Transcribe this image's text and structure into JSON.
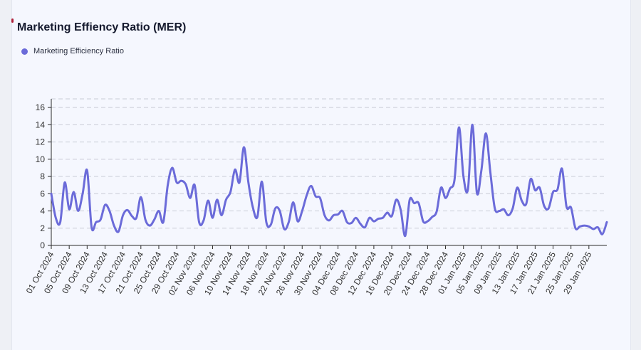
{
  "chart_data": {
    "type": "line",
    "title": "Marketing Effiency Ratio (MER)",
    "xlabel": "",
    "ylabel": "",
    "ylim": [
      0,
      17
    ],
    "yticks": [
      0,
      2,
      4,
      6,
      8,
      10,
      12,
      14,
      16
    ],
    "grid": "horizontal-dashed",
    "legend_position": "top-left",
    "color": "#6b6bd9",
    "x_tick_labels": [
      "01 Oct 2024",
      "05 Oct 2024",
      "09 Oct 2024",
      "13 Oct 2024",
      "17 Oct 2024",
      "21 Oct 2024",
      "25 Oct 2024",
      "29 Oct 2024",
      "02 Nov 2024",
      "06 Nov 2024",
      "10 Nov 2024",
      "14 Nov 2024",
      "18 Nov 2024",
      "22 Nov 2024",
      "26 Nov 2024",
      "30 Nov 2024",
      "04 Dec 2024",
      "08 Dec 2024",
      "12 Dec 2024",
      "16 Dec 2024",
      "20 Dec 2024",
      "24 Dec 2024",
      "28 Dec 2024",
      "01 Jan 2025",
      "05 Jan 2025",
      "09 Jan 2025",
      "13 Jan 2025",
      "17 Jan 2025",
      "21 Jan 2025",
      "25 Jan 2025",
      "29 Jan 2025"
    ],
    "series": [
      {
        "name": "Marketing Efficiency Ratio",
        "values": [
          6.0,
          3.2,
          2.7,
          7.3,
          4.2,
          6.2,
          4.0,
          6.0,
          8.7,
          2.1,
          2.7,
          3.0,
          4.7,
          4.0,
          2.3,
          1.6,
          3.5,
          4.1,
          3.4,
          3.2,
          5.6,
          3.0,
          2.3,
          3.0,
          4.0,
          2.7,
          7.0,
          9.0,
          7.3,
          7.5,
          7.1,
          5.5,
          7.0,
          2.7,
          2.9,
          5.2,
          3.2,
          5.3,
          3.5,
          5.3,
          6.2,
          8.8,
          7.3,
          11.4,
          7.3,
          4.4,
          3.3,
          7.4,
          2.7,
          2.4,
          4.3,
          4.0,
          1.9,
          2.7,
          5.0,
          2.8,
          4.0,
          5.8,
          6.9,
          5.7,
          5.5,
          3.5,
          2.9,
          3.5,
          3.6,
          4.0,
          2.7,
          2.6,
          3.2,
          2.5,
          2.1,
          3.2,
          2.8,
          3.1,
          3.2,
          3.8,
          3.4,
          5.3,
          4.1,
          1.1,
          5.3,
          4.9,
          4.9,
          2.8,
          2.8,
          3.3,
          3.9,
          6.7,
          5.5,
          6.6,
          7.6,
          13.7,
          8.0,
          6.5,
          14.0,
          6.1,
          8.7,
          13.0,
          8.5,
          4.3,
          4.0,
          4.2,
          3.5,
          4.3,
          6.7,
          5.2,
          4.8,
          7.7,
          6.4,
          6.7,
          4.6,
          4.3,
          6.2,
          6.5,
          8.9,
          4.5,
          4.4,
          2.0,
          2.2,
          2.3,
          2.2,
          1.9,
          2.1,
          1.3,
          2.7
        ]
      }
    ]
  }
}
